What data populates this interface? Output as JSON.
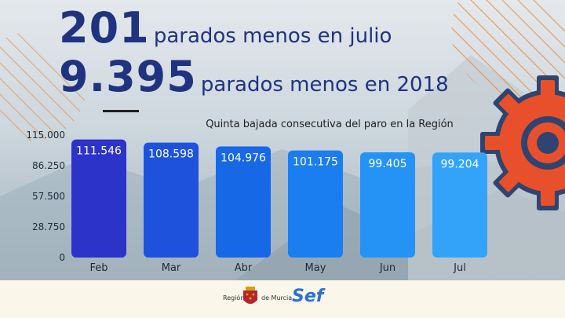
{
  "headline": {
    "line1_number": "201",
    "line1_text": "parados menos en julio",
    "line2_number": "9.395",
    "line2_text": "parados menos en 2018"
  },
  "chart_data": {
    "type": "bar",
    "title": "Quinta bajada consecutiva del paro en la Región",
    "categories": [
      "Feb",
      "Mar",
      "Abr",
      "May",
      "Jun",
      "Jul"
    ],
    "values": [
      111546,
      108598,
      104976,
      101175,
      99405,
      99204
    ],
    "value_labels": [
      "111.546",
      "108.598",
      "104.976",
      "101.175",
      "99.405",
      "99.204"
    ],
    "ylim": [
      0,
      115000
    ],
    "yticks": [
      "0",
      "28.750",
      "57.500",
      "86.250",
      "115.000"
    ],
    "xlabel": "",
    "ylabel": "",
    "grid": false,
    "bar_colors": [
      "#2b33c9",
      "#1f52dc",
      "#1668e6",
      "#1a7ef0",
      "#2592f6",
      "#33a3fa"
    ]
  },
  "logos": {
    "region_text_left": "Región",
    "region_text_right": "de Murcia",
    "sef_text": "Sef"
  },
  "colors": {
    "headline": "#1f3380",
    "gear": "#e8502b",
    "gear_outline": "#2f4470"
  }
}
